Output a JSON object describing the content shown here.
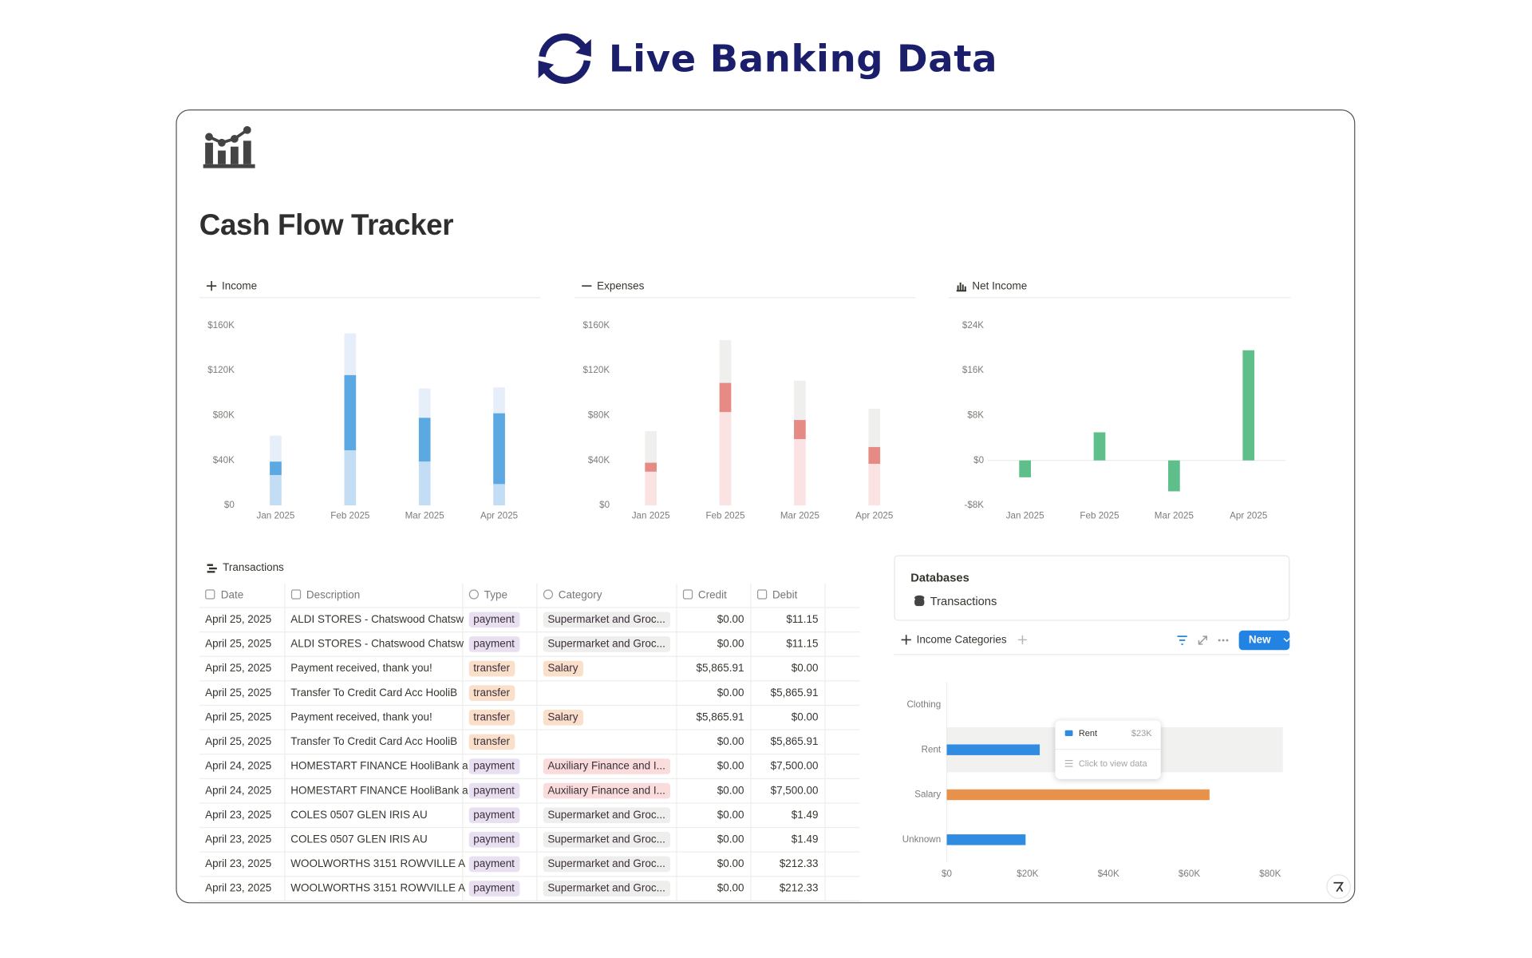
{
  "header": {
    "title": "Live Banking Data"
  },
  "page": {
    "title": "Cash Flow Tracker"
  },
  "charts": [
    {
      "type": "bar",
      "title": "Income",
      "stacked": true,
      "categories": [
        "Jan 2025",
        "Feb 2025",
        "Mar 2025",
        "Apr 2025"
      ],
      "series": [
        {
          "color": "#c3ddf4",
          "values": [
            27000,
            49000,
            39000,
            19000
          ]
        },
        {
          "color": "#5ba8e2",
          "values": [
            12000,
            67000,
            39000,
            63000
          ]
        },
        {
          "color": "#e6eff9",
          "values": [
            23000,
            37000,
            26000,
            23000
          ]
        }
      ],
      "ylim": [
        0,
        160000
      ],
      "yticks": [
        {
          "value": 0,
          "label": "$0"
        },
        {
          "value": 40000,
          "label": "$40K"
        },
        {
          "value": 80000,
          "label": "$80K"
        },
        {
          "value": 120000,
          "label": "$120K"
        },
        {
          "value": 160000,
          "label": "$160K"
        }
      ],
      "grid": false
    },
    {
      "type": "bar",
      "title": "Expenses",
      "stacked": true,
      "categories": [
        "Jan 2025",
        "Feb 2025",
        "Mar 2025",
        "Apr 2025"
      ],
      "series": [
        {
          "color": "#fbe3e3",
          "values": [
            30000,
            83000,
            59000,
            37000
          ]
        },
        {
          "color": "#e68a86",
          "values": [
            8000,
            26000,
            17000,
            15000
          ]
        },
        {
          "color": "#efefee",
          "values": [
            28000,
            38000,
            35000,
            34000
          ]
        }
      ],
      "ylim": [
        0,
        160000
      ],
      "yticks": [
        {
          "value": 0,
          "label": "$0"
        },
        {
          "value": 40000,
          "label": "$40K"
        },
        {
          "value": 80000,
          "label": "$80K"
        },
        {
          "value": 120000,
          "label": "$120K"
        },
        {
          "value": 160000,
          "label": "$160K"
        }
      ],
      "grid": false
    },
    {
      "type": "bar",
      "title": "Net Income",
      "stacked": false,
      "categories": [
        "Jan 2025",
        "Feb 2025",
        "Mar 2025",
        "Apr 2025"
      ],
      "series": [
        {
          "color": "#5fbf8b",
          "values": [
            -3000,
            5000,
            -5500,
            19600
          ]
        }
      ],
      "ylim": [
        -8000,
        24000
      ],
      "yticks": [
        {
          "value": -8000,
          "label": "-$8K"
        },
        {
          "value": 0,
          "label": "$0"
        },
        {
          "value": 8000,
          "label": "$8K"
        },
        {
          "value": 16000,
          "label": "$16K"
        },
        {
          "value": 24000,
          "label": "$24K"
        }
      ],
      "grid": false
    },
    {
      "type": "hbar",
      "title": "Income Categories",
      "categories": [
        "Clothing",
        "Rent",
        "Salary",
        "Unknown"
      ],
      "series": [
        {
          "colors": [
            "#2f8ce0",
            "#2f8ce0",
            "#e8914a",
            "#2f8ce0"
          ],
          "values": [
            0,
            23000,
            65000,
            19500
          ]
        }
      ],
      "xlim": [
        0,
        80000
      ],
      "xticks": [
        {
          "value": 0,
          "label": "$0"
        },
        {
          "value": 20000,
          "label": "$20K"
        },
        {
          "value": 40000,
          "label": "$40K"
        },
        {
          "value": 60000,
          "label": "$60K"
        },
        {
          "value": 80000,
          "label": "$80K"
        }
      ],
      "grid": false,
      "tooltip": {
        "name": "Rent",
        "value_label": "$23K",
        "hint": "Click to view data"
      }
    }
  ],
  "transactions": {
    "title": "Transactions",
    "columns": [
      "Date",
      "Description",
      "Type",
      "Category",
      "Credit",
      "Debit"
    ],
    "rows": [
      [
        "April 25, 2025",
        "ALDI STORES - Chatswood Chatsw",
        {
          "text": "payment",
          "color": "#e8dff0"
        },
        {
          "text": "Supermarket and Groc...",
          "color": "#eeeeec"
        },
        "$0.00",
        "$11.15"
      ],
      [
        "April 25, 2025",
        "ALDI STORES - Chatswood Chatsw",
        {
          "text": "payment",
          "color": "#e8dff0"
        },
        {
          "text": "Supermarket and Groc...",
          "color": "#eeeeec"
        },
        "$0.00",
        "$11.15"
      ],
      [
        "April 25, 2025",
        "Payment received, thank you!",
        {
          "text": "transfer",
          "color": "#fadfcb"
        },
        {
          "text": "Salary",
          "color": "#fadfcb"
        },
        "$5,865.91",
        "$0.00"
      ],
      [
        "April 25, 2025",
        "Transfer To Credit Card Acc HooliB",
        {
          "text": "transfer",
          "color": "#fadfcb"
        },
        null,
        "$0.00",
        "$5,865.91"
      ],
      [
        "April 25, 2025",
        "Payment received, thank you!",
        {
          "text": "transfer",
          "color": "#fadfcb"
        },
        {
          "text": "Salary",
          "color": "#fadfcb"
        },
        "$5,865.91",
        "$0.00"
      ],
      [
        "April 25, 2025",
        "Transfer To Credit Card Acc HooliB",
        {
          "text": "transfer",
          "color": "#fadfcb"
        },
        null,
        "$0.00",
        "$5,865.91"
      ],
      [
        "April 24, 2025",
        "HOMESTART FINANCE HooliBank a",
        {
          "text": "payment",
          "color": "#e8dff0"
        },
        {
          "text": "Auxiliary Finance and I...",
          "color": "#fbdcdc"
        },
        "$0.00",
        "$7,500.00"
      ],
      [
        "April 24, 2025",
        "HOMESTART FINANCE HooliBank a",
        {
          "text": "payment",
          "color": "#e8dff0"
        },
        {
          "text": "Auxiliary Finance and I...",
          "color": "#fbdcdc"
        },
        "$0.00",
        "$7,500.00"
      ],
      [
        "April 23, 2025",
        "COLES 0507 GLEN IRIS AU",
        {
          "text": "payment",
          "color": "#e8dff0"
        },
        {
          "text": "Supermarket and Groc...",
          "color": "#eeeeec"
        },
        "$0.00",
        "$1.49"
      ],
      [
        "April 23, 2025",
        "COLES 0507 GLEN IRIS AU",
        {
          "text": "payment",
          "color": "#e8dff0"
        },
        {
          "text": "Supermarket and Groc...",
          "color": "#eeeeec"
        },
        "$0.00",
        "$1.49"
      ],
      [
        "April 23, 2025",
        "WOOLWORTHS 3151 ROWVILLE A",
        {
          "text": "payment",
          "color": "#e8dff0"
        },
        {
          "text": "Supermarket and Groc...",
          "color": "#eeeeec"
        },
        "$0.00",
        "$212.33"
      ],
      [
        "April 23, 2025",
        "WOOLWORTHS 3151 ROWVILLE A",
        {
          "text": "payment",
          "color": "#e8dff0"
        },
        {
          "text": "Supermarket and Groc...",
          "color": "#eeeeec"
        },
        "$0.00",
        "$212.33"
      ]
    ]
  },
  "databases": {
    "title": "Databases",
    "items": [
      "Transactions"
    ]
  },
  "toolbar": {
    "new_button": "New"
  }
}
